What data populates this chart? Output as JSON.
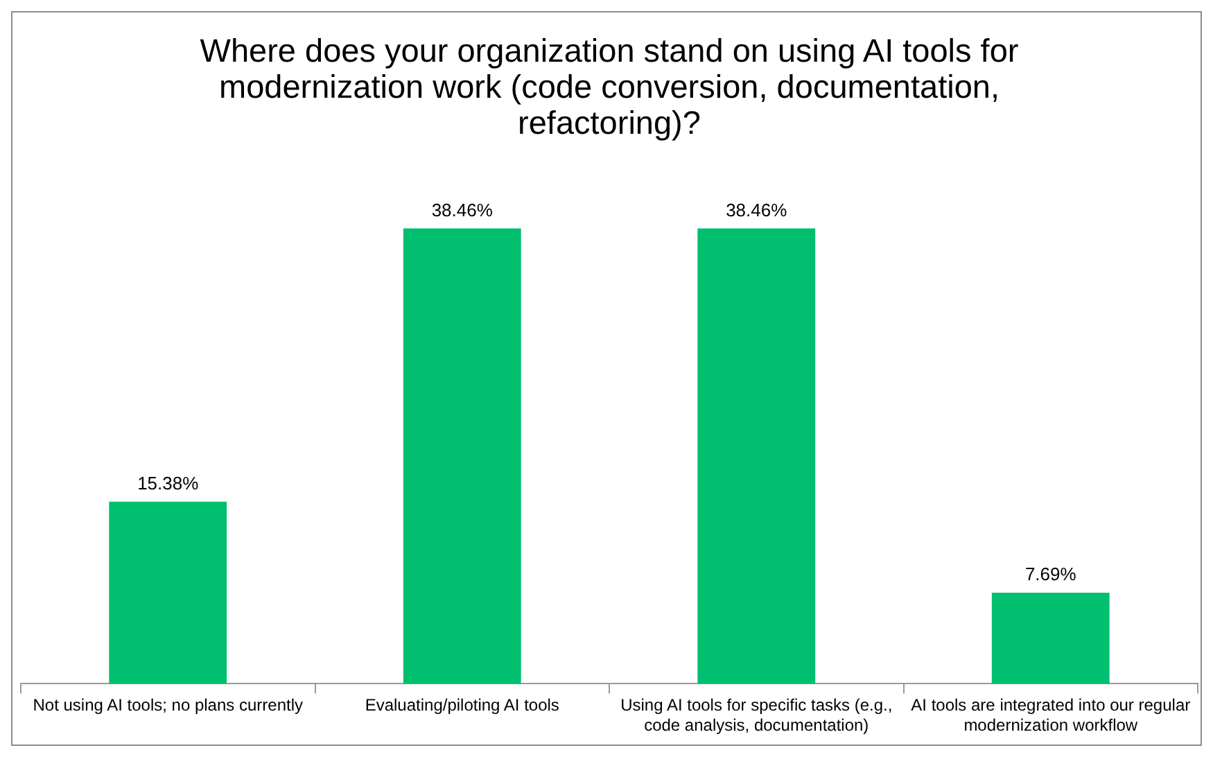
{
  "chart_data": {
    "type": "bar",
    "title": "Where does your organization stand on using AI tools for modernization work (code conversion, documentation, refactoring)?",
    "categories": [
      "Not using AI tools; no plans currently",
      "Evaluating/piloting AI tools",
      "Using AI tools for specific tasks (e.g., code analysis, documentation)",
      "AI tools are integrated into our regular modernization workflow"
    ],
    "values": [
      15.38,
      38.46,
      38.46,
      7.69
    ],
    "color": "#00bf6f",
    "value_labels": [
      "15.38%",
      "38.46%",
      "38.46%",
      "7.69%"
    ],
    "grid": false,
    "legend": false
  }
}
